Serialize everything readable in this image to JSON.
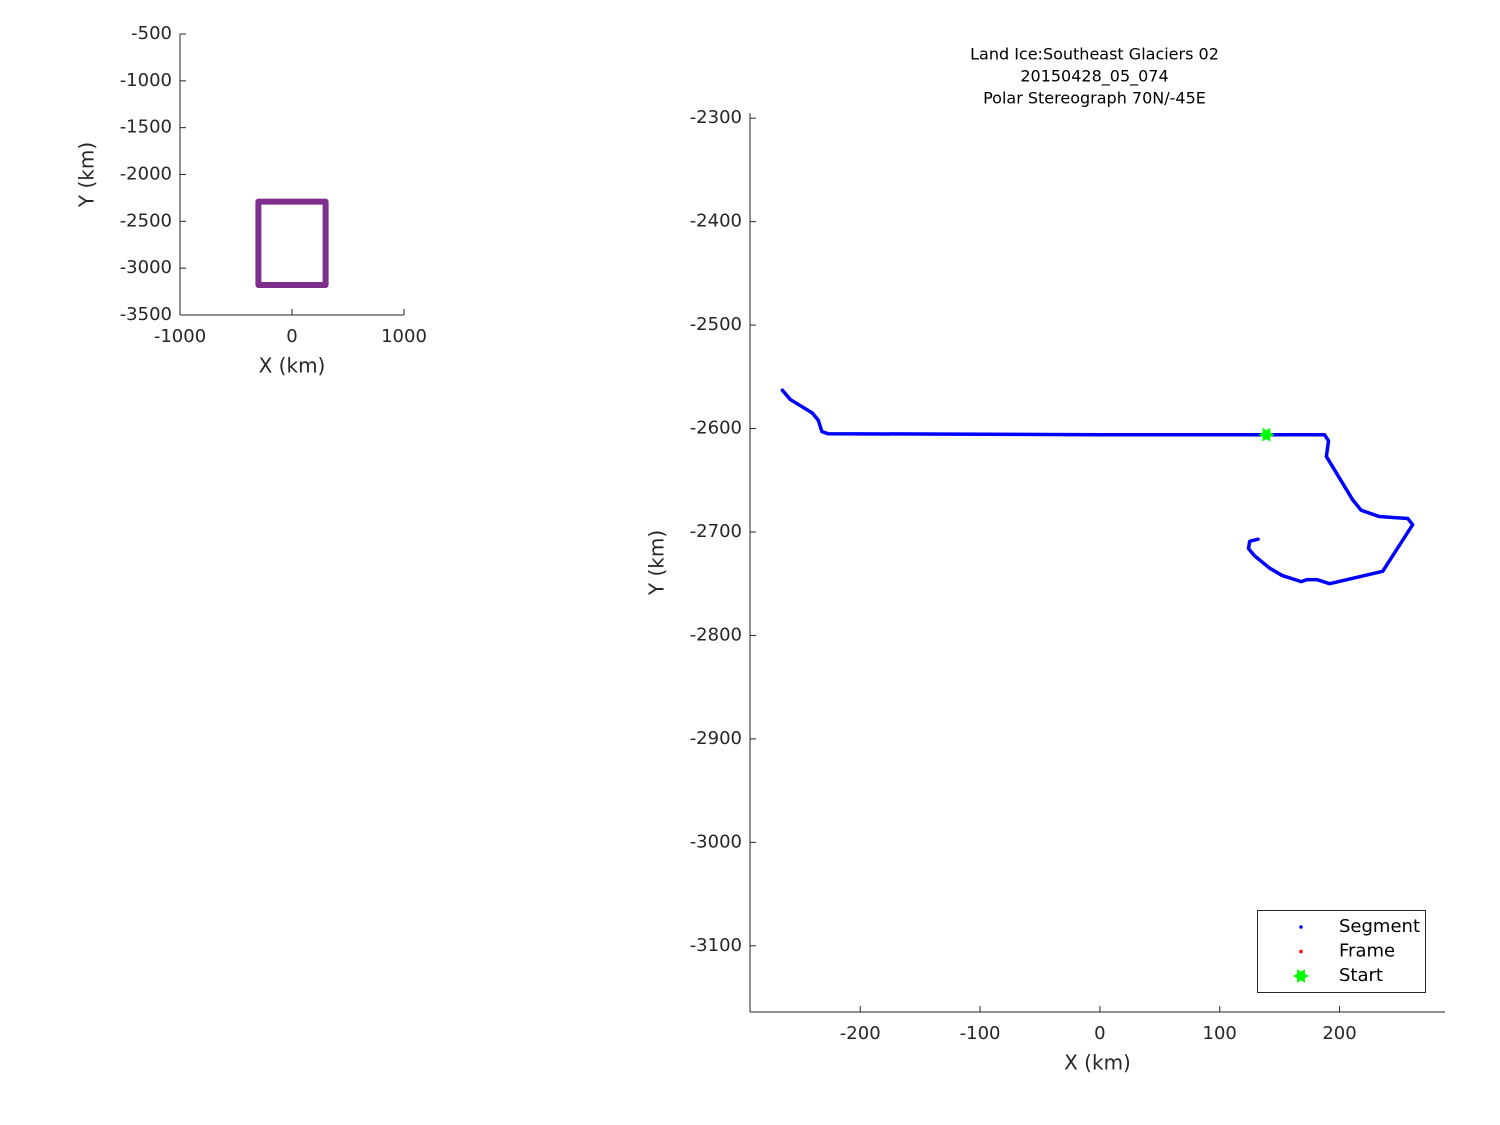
{
  "chart_data": [
    {
      "type": "line",
      "xlabel": "X (km)",
      "ylabel": "Y (km)",
      "xlim": [
        -1000,
        1000
      ],
      "xticks": [
        -1000,
        0,
        1000
      ],
      "ylim": [
        -3500,
        -500
      ],
      "yticks": [
        -3500,
        -3000,
        -2500,
        -2000,
        -1500,
        -1000,
        -500
      ],
      "series": [
        {
          "color": "#7e2f8e",
          "marker": "line",
          "x": [
            -300,
            300,
            300,
            -300,
            -300
          ],
          "values": [
            -2290,
            -2290,
            -3180,
            -3180,
            -2290
          ]
        }
      ]
    },
    {
      "type": "line",
      "title": [
        "Land Ice:Southeast  Glaciers 02",
        "20150428_05_074",
        "Polar Stereograph 70N/-45E"
      ],
      "xlabel": "X (km)",
      "ylabel": "Y (km)",
      "xlim": [
        -292,
        288
      ],
      "xticks": [
        -200,
        -100,
        0,
        100,
        200
      ],
      "ylim": [
        -3164,
        -2295
      ],
      "yticks": [
        -3100,
        -3000,
        -2900,
        -2800,
        -2700,
        -2600,
        -2500,
        -2400,
        -2300
      ],
      "legend": "southeast",
      "series": [
        {
          "name": "Segment",
          "color": "#0000ff",
          "marker": "dot",
          "x": [
            -265,
            -258.3,
            -240,
            -235,
            -232,
            -227,
            0,
            187.5,
            190.8,
            189,
            211,
            218,
            233,
            257,
            261,
            246,
            236,
            191.7,
            181,
            173,
            168,
            152,
            141.7,
            129,
            124,
            125,
            132
          ],
          "values": [
            -2563,
            -2572,
            -2585,
            -2592,
            -2603,
            -2605,
            -2606,
            -2606,
            -2612,
            -2627,
            -2669,
            -2679,
            -2685,
            -2687,
            -2693,
            -2720,
            -2738,
            -2750,
            -2746,
            -2746,
            -2748,
            -2742,
            -2735,
            -2723,
            -2716,
            -2709,
            -2707
          ]
        },
        {
          "name": "Frame",
          "color": "#ff0000",
          "marker": "dot",
          "x": [],
          "values": []
        },
        {
          "name": "Start",
          "color": "#00ff00",
          "marker": "star",
          "x": [
            139
          ],
          "values": [
            -2606
          ]
        }
      ]
    }
  ]
}
